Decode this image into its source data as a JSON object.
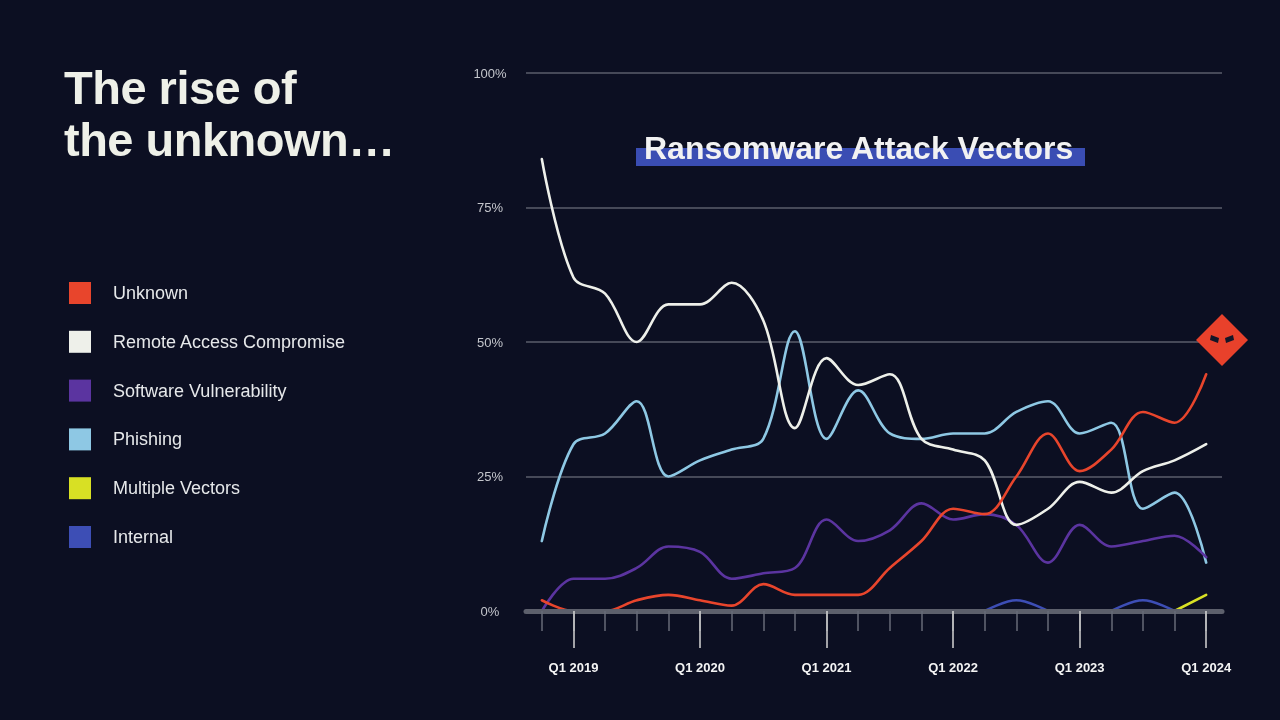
{
  "chart_data": {
    "type": "line",
    "title": "The rise of\nthe unknown…",
    "subtitle": "Ransomware Attack Vectors",
    "categories": [
      null,
      "Q1 2019",
      null,
      null,
      null,
      "Q1 2020",
      null,
      null,
      null,
      "Q1 2021",
      null,
      null,
      null,
      "Q1 2022",
      null,
      null,
      null,
      "Q1 2023",
      null,
      null,
      null,
      "Q1 2024"
    ],
    "series": [
      {
        "name": "Unknown",
        "color": "#e8452c",
        "values": [
          2,
          0,
          0,
          2,
          3,
          2,
          1,
          5,
          3,
          3,
          3,
          8,
          13,
          19,
          18,
          25,
          33,
          26,
          30,
          37,
          35,
          44
        ]
      },
      {
        "name": "Remote Access Compromise",
        "color": "#eef0ea",
        "values": [
          84,
          62,
          59,
          50,
          57,
          57,
          61,
          54,
          34,
          47,
          42,
          44,
          32,
          30,
          28,
          16,
          19,
          24,
          22,
          26,
          28,
          31
        ]
      },
      {
        "name": "Software Vulnerability",
        "color": "#5b34a0",
        "values": [
          0,
          6,
          6,
          8,
          12,
          11,
          6,
          7,
          8,
          17,
          13,
          15,
          20,
          17,
          18,
          16,
          9,
          16,
          12,
          13,
          14,
          10
        ]
      },
      {
        "name": "Phishing",
        "color": "#8ec8e4",
        "values": [
          13,
          31,
          33,
          39,
          25,
          28,
          30,
          32,
          52,
          32,
          41,
          33,
          32,
          33,
          33,
          37,
          39,
          33,
          35,
          19,
          22,
          9
        ]
      },
      {
        "name": "Multiple Vectors",
        "color": "#d8e024",
        "values": [
          null,
          null,
          null,
          null,
          null,
          null,
          null,
          null,
          null,
          null,
          null,
          null,
          null,
          null,
          null,
          null,
          null,
          null,
          null,
          null,
          0,
          3
        ]
      },
      {
        "name": "Internal",
        "color": "#3d4eb5",
        "values": [
          null,
          null,
          null,
          null,
          null,
          null,
          null,
          null,
          null,
          null,
          null,
          null,
          null,
          null,
          0,
          2,
          0,
          null,
          0,
          2,
          0,
          null
        ]
      }
    ],
    "ylim": [
      0,
      100
    ],
    "yticks": [
      {
        "value": 0,
        "label": "0%"
      },
      {
        "value": 25,
        "label": "25%"
      },
      {
        "value": 50,
        "label": "50%"
      },
      {
        "value": 75,
        "label": "75%"
      },
      {
        "value": 100,
        "label": "100%"
      }
    ],
    "grid": "y",
    "legend": "left",
    "marker": "none",
    "line_style": "solid"
  }
}
